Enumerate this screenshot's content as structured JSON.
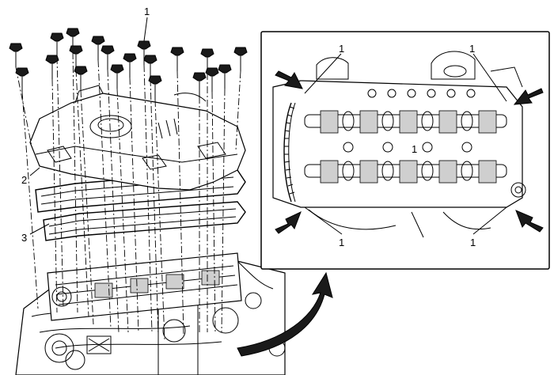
{
  "callouts": {
    "main_top": "1",
    "main_left_upper": "2",
    "main_left_lower": "3",
    "detail_top_left": "1",
    "detail_top_right": "1",
    "detail_center": "1",
    "detail_bottom_left": "1",
    "detail_bottom_right": "1"
  },
  "colors": {
    "ink": "#000000",
    "background": "#ffffff",
    "arrow": "#1a1a1a"
  }
}
